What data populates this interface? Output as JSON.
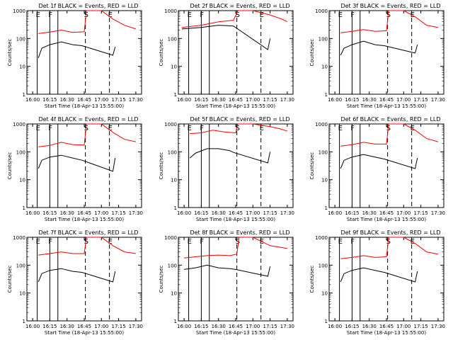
{
  "figure": {
    "xlabel": "Start Time (18-Apr-13 15:55:00)",
    "ylabel": "Counts/sec",
    "x_ticks": [
      "16:00",
      "16:15",
      "16:30",
      "16:45",
      "17:00",
      "17:15",
      "17:30"
    ],
    "y_ticks": [
      "1",
      "10",
      "100",
      "1000"
    ]
  },
  "chart_data": [
    {
      "type": "line",
      "title": "Det 1f BLACK = Events, RED = LLD",
      "xlabel": "Start Time (18-Apr-13 15:55:00)",
      "ylabel": "Counts/sec",
      "xlim": [
        "15:55",
        "17:35"
      ],
      "ylim": [
        1,
        1000
      ],
      "yscale": "log",
      "markers": [
        {
          "label": "E",
          "time": "16:04",
          "style": "solid"
        },
        {
          "label": "F",
          "time": "16:15",
          "style": "solid"
        },
        {
          "label": "",
          "time": "16:22",
          "style": "solid"
        },
        {
          "label": "S",
          "time": "16:46",
          "style": "dashed"
        },
        {
          "label": "E",
          "time": "17:07",
          "style": "dashed"
        }
      ],
      "series": [
        {
          "color": "#ff0000",
          "x": [
            "16:05",
            "16:15",
            "16:25",
            "16:35",
            "16:45",
            "16:47",
            "17:00",
            "17:10",
            "17:20",
            "17:30"
          ],
          "values": [
            150,
            170,
            200,
            165,
            175,
            1000,
            1000,
            500,
            300,
            220
          ]
        },
        {
          "color": "#000000",
          "x": [
            "16:05",
            "16:08",
            "16:15",
            "16:25",
            "16:35",
            "16:43",
            "17:10",
            "17:12"
          ],
          "values": [
            20,
            45,
            60,
            75,
            60,
            55,
            25,
            50
          ]
        }
      ]
    },
    {
      "type": "line",
      "title": "Det 2f BLACK = Events, RED = LLD",
      "xlabel": "Start Time (18-Apr-13 15:55:00)",
      "ylabel": "Counts/sec",
      "xlim": [
        "15:55",
        "17:35"
      ],
      "ylim": [
        1,
        1000
      ],
      "yscale": "log",
      "markers": [
        {
          "label": "E",
          "time": "16:04",
          "style": "solid"
        },
        {
          "label": "F",
          "time": "16:15",
          "style": "solid"
        },
        {
          "label": "",
          "time": "16:22",
          "style": "solid"
        },
        {
          "label": "S",
          "time": "16:46",
          "style": "dashed"
        },
        {
          "label": "E",
          "time": "17:07",
          "style": "dashed"
        }
      ],
      "series": [
        {
          "color": "#ff0000",
          "x": [
            "15:58",
            "16:15",
            "16:30",
            "16:43",
            "16:47",
            "17:00",
            "17:15",
            "17:25",
            "17:30"
          ],
          "values": [
            250,
            300,
            400,
            450,
            1000,
            1000,
            700,
            500,
            400
          ]
        },
        {
          "color": "#000000",
          "x": [
            "15:58",
            "16:15",
            "16:30",
            "16:43",
            "17:13",
            "17:15"
          ],
          "values": [
            220,
            250,
            300,
            280,
            40,
            100
          ]
        }
      ]
    },
    {
      "type": "line",
      "title": "Det 3f BLACK = Events, RED = LLD",
      "xlabel": "Start Time (18-Apr-13 15:55:00)",
      "ylabel": "Counts/sec",
      "xlim": [
        "15:55",
        "17:35"
      ],
      "ylim": [
        1,
        1000
      ],
      "yscale": "log",
      "markers": [
        {
          "label": "E",
          "time": "16:04",
          "style": "solid"
        },
        {
          "label": "F",
          "time": "16:15",
          "style": "solid"
        },
        {
          "label": "",
          "time": "16:22",
          "style": "solid"
        },
        {
          "label": "S",
          "time": "16:46",
          "style": "dashed"
        },
        {
          "label": "E",
          "time": "17:07",
          "style": "dashed"
        }
      ],
      "series": [
        {
          "color": "#ff0000",
          "x": [
            "16:05",
            "16:15",
            "16:25",
            "16:35",
            "16:45",
            "16:47",
            "17:00",
            "17:10",
            "17:20",
            "17:30"
          ],
          "values": [
            160,
            180,
            210,
            180,
            190,
            1000,
            1000,
            600,
            300,
            250
          ]
        },
        {
          "color": "#000000",
          "x": [
            "16:05",
            "16:08",
            "16:15",
            "16:25",
            "16:35",
            "16:43",
            "17:10",
            "17:12"
          ],
          "values": [
            25,
            45,
            60,
            80,
            60,
            55,
            30,
            60
          ]
        }
      ]
    },
    {
      "type": "line",
      "title": "Det 4f BLACK = Events, RED = LLD",
      "xlabel": "Start Time (18-Apr-13 15:55:00)",
      "ylabel": "Counts/sec",
      "xlim": [
        "15:55",
        "17:35"
      ],
      "ylim": [
        1,
        1000
      ],
      "yscale": "log",
      "markers": [
        {
          "label": "E",
          "time": "16:04",
          "style": "solid"
        },
        {
          "label": "F",
          "time": "16:15",
          "style": "solid"
        },
        {
          "label": "",
          "time": "16:22",
          "style": "solid"
        },
        {
          "label": "S",
          "time": "16:46",
          "style": "dashed"
        },
        {
          "label": "E",
          "time": "17:07",
          "style": "dashed"
        }
      ],
      "series": [
        {
          "color": "#ff0000",
          "x": [
            "16:05",
            "16:15",
            "16:25",
            "16:35",
            "16:45",
            "16:47",
            "17:00",
            "17:10",
            "17:20",
            "17:30"
          ],
          "values": [
            150,
            170,
            220,
            180,
            175,
            1000,
            1000,
            500,
            280,
            230
          ]
        },
        {
          "color": "#000000",
          "x": [
            "16:05",
            "16:08",
            "16:15",
            "16:25",
            "16:35",
            "16:43",
            "17:10",
            "17:12"
          ],
          "values": [
            25,
            50,
            65,
            75,
            60,
            50,
            20,
            60
          ]
        }
      ]
    },
    {
      "type": "line",
      "title": "Det 5f BLACK = Events, RED = LLD",
      "xlabel": "Start Time (18-Apr-13 15:55:00)",
      "ylabel": "Counts/sec",
      "xlim": [
        "15:55",
        "17:35"
      ],
      "ylim": [
        1,
        1000
      ],
      "yscale": "log",
      "markers": [
        {
          "label": "E",
          "time": "16:04",
          "style": "solid"
        },
        {
          "label": "F",
          "time": "16:15",
          "style": "solid"
        },
        {
          "label": "",
          "time": "16:22",
          "style": "solid"
        },
        {
          "label": "S",
          "time": "16:46",
          "style": "dashed"
        },
        {
          "label": "E",
          "time": "17:07",
          "style": "dashed"
        }
      ],
      "series": [
        {
          "color": "#ff0000",
          "x": [
            "16:05",
            "16:15",
            "16:25",
            "16:35",
            "16:45",
            "16:47",
            "17:00",
            "17:15",
            "17:25",
            "17:30"
          ],
          "values": [
            450,
            480,
            600,
            520,
            480,
            1000,
            1000,
            800,
            650,
            550
          ]
        },
        {
          "color": "#000000",
          "x": [
            "16:05",
            "16:10",
            "16:20",
            "16:30",
            "16:40",
            "16:43",
            "17:13",
            "17:15"
          ],
          "values": [
            60,
            90,
            130,
            130,
            110,
            95,
            40,
            100
          ]
        }
      ]
    },
    {
      "type": "line",
      "title": "Det 6f BLACK = Events, RED = LLD",
      "xlabel": "Start Time (18-Apr-13 15:55:00)",
      "ylabel": "Counts/sec",
      "xlim": [
        "15:55",
        "17:35"
      ],
      "ylim": [
        1,
        1000
      ],
      "yscale": "log",
      "markers": [
        {
          "label": "E",
          "time": "16:04",
          "style": "solid"
        },
        {
          "label": "F",
          "time": "16:15",
          "style": "solid"
        },
        {
          "label": "",
          "time": "16:22",
          "style": "solid"
        },
        {
          "label": "S",
          "time": "16:46",
          "style": "dashed"
        },
        {
          "label": "E",
          "time": "17:07",
          "style": "dashed"
        }
      ],
      "series": [
        {
          "color": "#ff0000",
          "x": [
            "16:05",
            "16:15",
            "16:25",
            "16:35",
            "16:45",
            "16:47",
            "17:00",
            "17:10",
            "17:20",
            "17:30"
          ],
          "values": [
            160,
            180,
            220,
            190,
            190,
            1000,
            1000,
            600,
            300,
            230
          ]
        },
        {
          "color": "#000000",
          "x": [
            "16:05",
            "16:08",
            "16:15",
            "16:25",
            "16:35",
            "16:43",
            "17:10",
            "17:12"
          ],
          "values": [
            25,
            50,
            65,
            80,
            65,
            55,
            25,
            60
          ]
        }
      ]
    },
    {
      "type": "line",
      "title": "Det 7f BLACK = Events, RED = LLD",
      "xlabel": "Start Time (18-Apr-13 15:55:00)",
      "ylabel": "Counts/sec",
      "xlim": [
        "15:55",
        "17:35"
      ],
      "ylim": [
        1,
        1000
      ],
      "yscale": "log",
      "markers": [
        {
          "label": "E",
          "time": "16:04",
          "style": "solid"
        },
        {
          "label": "F",
          "time": "16:15",
          "style": "solid"
        },
        {
          "label": "",
          "time": "16:22",
          "style": "solid"
        },
        {
          "label": "S",
          "time": "16:46",
          "style": "dashed"
        },
        {
          "label": "E",
          "time": "17:07",
          "style": "dashed"
        }
      ],
      "series": [
        {
          "color": "#ff0000",
          "x": [
            "16:05",
            "16:15",
            "16:25",
            "16:35",
            "16:45",
            "16:47",
            "17:00",
            "17:10",
            "17:20",
            "17:30"
          ],
          "values": [
            230,
            260,
            300,
            260,
            260,
            1000,
            1000,
            500,
            300,
            260
          ]
        },
        {
          "color": "#000000",
          "x": [
            "16:05",
            "16:08",
            "16:15",
            "16:25",
            "16:35",
            "16:43",
            "17:10",
            "17:12"
          ],
          "values": [
            25,
            50,
            65,
            75,
            60,
            55,
            25,
            60
          ]
        }
      ]
    },
    {
      "type": "line",
      "title": "Det 8f BLACK = Events, RED = LLD",
      "xlabel": "Start Time (18-Apr-13 15:55:00)",
      "ylabel": "Counts/sec",
      "xlim": [
        "15:55",
        "17:35"
      ],
      "ylim": [
        1,
        1000
      ],
      "yscale": "log",
      "markers": [
        {
          "label": "E",
          "time": "16:04",
          "style": "solid"
        },
        {
          "label": "F",
          "time": "16:15",
          "style": "solid"
        },
        {
          "label": "",
          "time": "16:22",
          "style": "solid"
        },
        {
          "label": "S",
          "time": "16:46",
          "style": "dashed"
        },
        {
          "label": "E",
          "time": "17:07",
          "style": "dashed"
        }
      ],
      "series": [
        {
          "color": "#ff0000",
          "x": [
            "16:00",
            "16:10",
            "16:20",
            "16:30",
            "16:40",
            "16:46",
            "16:48",
            "17:00",
            "17:15",
            "17:30"
          ],
          "values": [
            180,
            200,
            220,
            230,
            220,
            250,
            1000,
            1000,
            500,
            400
          ]
        },
        {
          "color": "#000000",
          "x": [
            "16:00",
            "16:10",
            "16:20",
            "16:30",
            "16:40",
            "16:45",
            "17:13",
            "17:15"
          ],
          "values": [
            70,
            80,
            100,
            80,
            75,
            70,
            40,
            90
          ]
        }
      ]
    },
    {
      "type": "line",
      "title": "Det 9f BLACK = Events, RED = LLD",
      "xlabel": "Start Time (18-Apr-13 15:55:00)",
      "ylabel": "Counts/sec",
      "xlim": [
        "15:55",
        "17:35"
      ],
      "ylim": [
        1,
        1000
      ],
      "yscale": "log",
      "markers": [
        {
          "label": "E",
          "time": "16:04",
          "style": "solid"
        },
        {
          "label": "F",
          "time": "16:15",
          "style": "solid"
        },
        {
          "label": "",
          "time": "16:22",
          "style": "solid"
        },
        {
          "label": "S",
          "time": "16:46",
          "style": "dashed"
        },
        {
          "label": "E",
          "time": "17:07",
          "style": "dashed"
        }
      ],
      "series": [
        {
          "color": "#ff0000",
          "x": [
            "16:05",
            "16:15",
            "16:25",
            "16:35",
            "16:45",
            "16:47",
            "17:00",
            "17:10",
            "17:20",
            "17:30"
          ],
          "values": [
            170,
            190,
            220,
            190,
            200,
            1000,
            1000,
            600,
            300,
            250
          ]
        },
        {
          "color": "#000000",
          "x": [
            "16:05",
            "16:08",
            "16:15",
            "16:25",
            "16:35",
            "16:43",
            "17:10",
            "17:12"
          ],
          "values": [
            25,
            50,
            65,
            80,
            65,
            55,
            25,
            60
          ]
        }
      ]
    }
  ]
}
